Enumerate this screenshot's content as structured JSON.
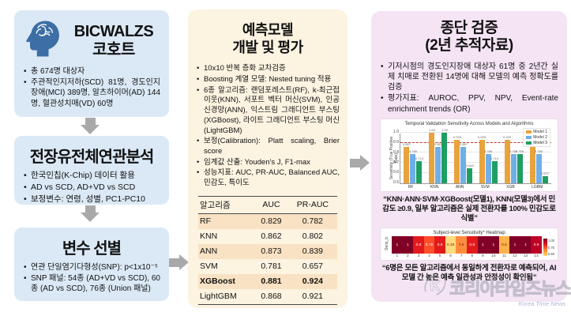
{
  "left": {
    "cohort": {
      "title_line1": "BICWALZS",
      "title_line2": "코호트",
      "bullets": [
        "총 674명 대상자",
        "주관적인지저하(SCD) 81명, 경도인지장애(MCI) 389명, 알츠하이머(AD) 144명, 혈관성치매(VD) 60명"
      ]
    },
    "gwas": {
      "title": "전장유전체연관분석",
      "bullets": [
        "한국인칩(K-Chip) 데이터 활용",
        "AD vs SCD, AD+VD vs SCD",
        "보정변수: 연령, 성별, PC1-PC10"
      ]
    },
    "select": {
      "title": "변수 선별",
      "bullets": [
        "연관 단일염기다형성(SNP): p<1x10⁻⁵",
        "SNP 패널: 54종 (AD+VD vs SCD), 60종 (AD vs SCD), 76종 (Union 패널)"
      ]
    }
  },
  "middle": {
    "title_line1": "예측모델",
    "title_line2": "개발 및 평가",
    "bullets": [
      "10x10 반복 층화 교차검증",
      "Boosting 계열 모델: Nested tuning 적용",
      "6종 알고리즘: 랜덤포레스트(RF), k-최근접 이웃(KNN), 서포트 벡터 머신(SVM), 인공 신경망(ANN), 익스트림 그래디언트 부스팅(XGBoost), 라이트 그래디언트 부스팅 머신(LightGBM)",
      "보정(Calibration): Platt scaling, Brier score",
      "임계값 산출: Youden's J, F1-max",
      "성능지표: AUC, PR-AUC, Balanced AUC, 민감도, 특이도"
    ],
    "table": {
      "headers": [
        "알고리즘",
        "AUC",
        "PR-AUC"
      ],
      "rows": [
        {
          "cells": [
            "RF",
            "0.829",
            "0.782"
          ],
          "bold": false
        },
        {
          "cells": [
            "KNN",
            "0.862",
            "0.802"
          ],
          "bold": false
        },
        {
          "cells": [
            "ANN",
            "0.873",
            "0.839"
          ],
          "bold": false
        },
        {
          "cells": [
            "SVM",
            "0.781",
            "0.657"
          ],
          "bold": false
        },
        {
          "cells": [
            "XGBoost",
            "0.881",
            "0.924"
          ],
          "bold": true
        },
        {
          "cells": [
            "LightGBM",
            "0.868",
            "0.921"
          ],
          "bold": false
        }
      ]
    }
  },
  "right": {
    "title_line1": "종단 검증",
    "title_line2": "(2년 추적자료)",
    "bullets": [
      "기저시점의 경도인지장애 대상자 61명 중 2년간 실제 치매로 전환된 14명에 대해 모델의 예측 정확도를 검증",
      "평가지표: AUROC, PPV, NPV, Event-rate enrichment trends (OR)"
    ],
    "caption1": "“KNN·ANN·SVM·XGBoost(모델1), KNN(모델3)에서 민감도 ≥0.9, 일부 알고리즘은 실제 전환자를 100% 민감도로 식별”",
    "caption2": "“6명은 모든 알고리즘에서 동일하게 전환자로 예측되어, AI 모델 간 높은 예측 일관성과 안정성이 확인됨”"
  },
  "chart_data": [
    {
      "type": "bar",
      "title": "Temporal Validation Sensitivity Across Models and Algorithms",
      "categories": [
        "RF",
        "KNN",
        "ANN",
        "SVM",
        "XGB",
        "LGBM"
      ],
      "series": [
        {
          "name": "Model 1",
          "color": "#e8a33d",
          "values": [
            0.857,
            1.0,
            0.929,
            0.929,
            0.929,
            0.857
          ]
        },
        {
          "name": "Model 2",
          "color": "#6fafe7",
          "values": [
            0.786,
            0.857,
            0.857,
            0.786,
            0.786,
            0.786
          ]
        },
        {
          "name": "Model 3",
          "color": "#1f9e63",
          "values": [
            0.714,
            1.0,
            0.643,
            0.714,
            0.786,
            0.571
          ]
        }
      ],
      "xlabel": "",
      "ylabel": "Sensitivity (True Positive Rate)",
      "ylim": [
        0.5,
        1.0
      ],
      "yticks": [
        0.5,
        0.6,
        0.7,
        0.8,
        0.9,
        1.0
      ],
      "ref_line": 0.9,
      "grid": true,
      "legend_position": "top-right"
    },
    {
      "type": "heatmap",
      "title": "Subject-level Sensitivity* Heatmap",
      "row_label": "Sens_b",
      "x": [
        1,
        2,
        3,
        4,
        5,
        6,
        7,
        8,
        9,
        10,
        11,
        12,
        13,
        14
      ],
      "values": [
        1,
        1,
        0.8,
        0.75,
        0.8,
        0.45,
        0.6,
        0.8,
        1,
        1,
        0.5,
        1,
        1,
        0.9
      ],
      "colorbar_ticks": [
        1.0,
        0.75,
        0.5
      ]
    }
  ],
  "watermark": {
    "text": "코리아타임즈뉴스",
    "subtext": "Korea Time News"
  },
  "colors": {
    "left_box_bg": "#dbe9f6",
    "middle_panel_bg": "#fdf3e1",
    "right_panel_bg": "#f5e4f4",
    "arrow_gray": "#a9a9a9",
    "table_row_shade": "#f9e2c3",
    "brain_icon": "#3d6ea5",
    "model1_orange": "#e8a33d",
    "model2_blue": "#6fafe7",
    "model3_green": "#1f9e63",
    "ref_line_red": "#c0392b"
  }
}
